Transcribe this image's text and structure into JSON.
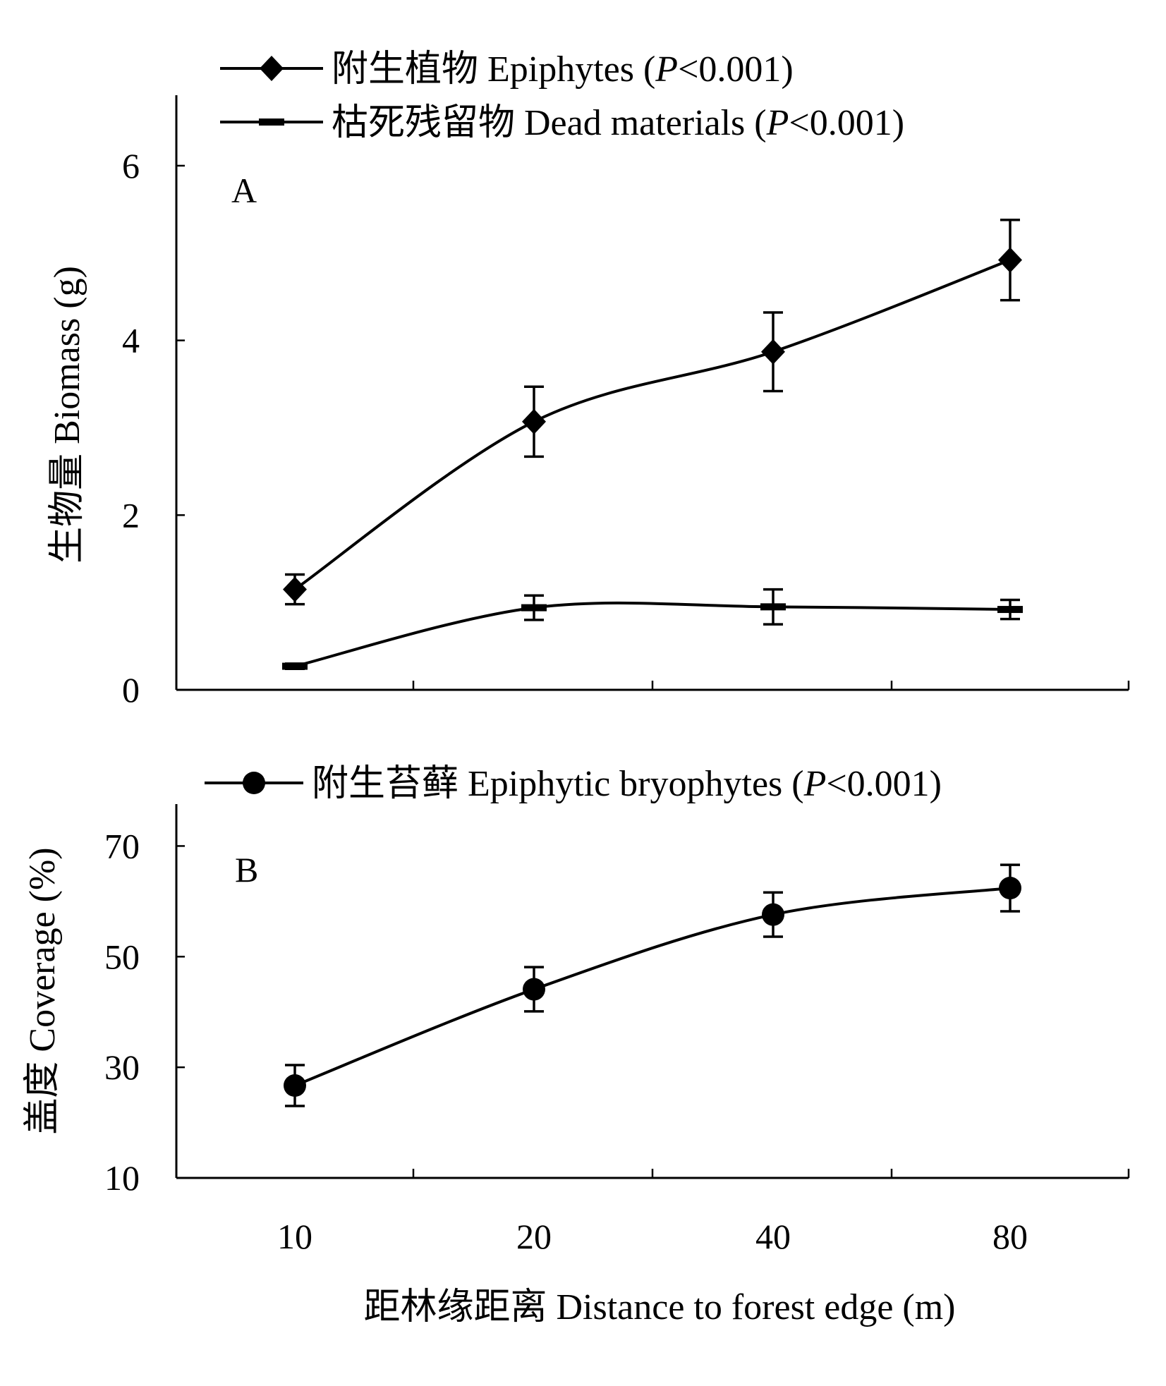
{
  "chart_data": [
    {
      "type": "line",
      "panel_label": "A",
      "ylabel": "生物量 Biomass (g)",
      "ylim": [
        0,
        6.5
      ],
      "yticks": [
        "0",
        "2",
        "4",
        "6"
      ],
      "x_categories": [
        "10",
        "20",
        "40",
        "80"
      ],
      "grid": false,
      "legend_position": "top",
      "series": [
        {
          "name": "附生植物 Epiphytes",
          "p_value": "<0.001",
          "marker": "diamond",
          "values": [
            1.15,
            3.07,
            3.87,
            4.92
          ],
          "errors": [
            0.17,
            0.4,
            0.45,
            0.46
          ]
        },
        {
          "name": "枯死残留物 Dead materials",
          "p_value": "<0.001",
          "marker": "dash",
          "values": [
            0.27,
            0.94,
            0.95,
            0.92
          ],
          "errors": [
            0.03,
            0.14,
            0.2,
            0.11
          ]
        }
      ]
    },
    {
      "type": "line",
      "panel_label": "B",
      "ylabel": "盖度 Coverage (%)",
      "ylim": [
        10,
        80
      ],
      "yticks": [
        "10",
        "30",
        "50",
        "70"
      ],
      "x_categories": [
        "10",
        "20",
        "40",
        "80"
      ],
      "xlabel": "距林缘距离 Distance to forest edge (m)",
      "grid": false,
      "legend_position": "top",
      "series": [
        {
          "name": "附生苔藓 Epiphytic bryophytes",
          "p_value": "<0.001",
          "marker": "circle",
          "values": [
            26.7,
            44.1,
            57.6,
            62.4
          ],
          "errors": [
            3.7,
            4.0,
            4.0,
            4.2
          ]
        }
      ]
    }
  ]
}
